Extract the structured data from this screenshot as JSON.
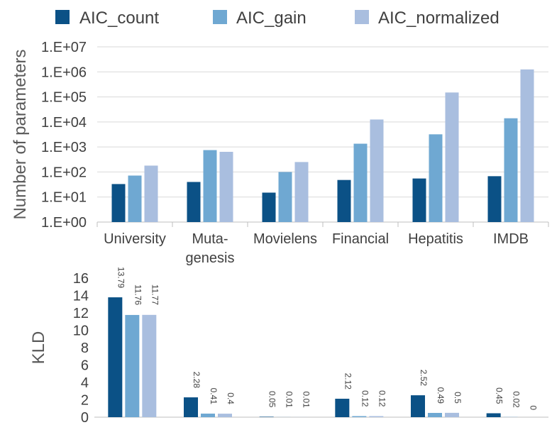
{
  "colors": {
    "AIC_count": "#0b5186",
    "AIC_gain": "#6fa8d2",
    "AIC_normalized": "#a9bedf",
    "grid": "#d9d9d9",
    "axis": "#bfbfbf",
    "text": "#404040"
  },
  "chart_data": [
    {
      "type": "bar",
      "y_scale": "log",
      "title": "",
      "xlabel": "",
      "ylabel": "Number of parameters",
      "ylim": [
        1,
        10000000
      ],
      "y_ticks": [
        "1.E+00",
        "1.E+01",
        "1.E+02",
        "1.E+03",
        "1.E+04",
        "1.E+05",
        "1.E+06",
        "1.E+07"
      ],
      "grid": true,
      "legend": "top",
      "categories": [
        [
          "University"
        ],
        [
          "Muta-",
          "genesis"
        ],
        [
          "Movielens"
        ],
        [
          "Financial"
        ],
        [
          "Hepatitis"
        ],
        [
          "IMDB"
        ]
      ],
      "series": [
        {
          "name": "AIC_count",
          "values": [
            33,
            40,
            15,
            48,
            55,
            68
          ]
        },
        {
          "name": "AIC_gain",
          "values": [
            72,
            750,
            100,
            1350,
            3200,
            14000
          ]
        },
        {
          "name": "AIC_normalized",
          "values": [
            180,
            640,
            250,
            12500,
            150000,
            1250000
          ]
        }
      ]
    },
    {
      "type": "bar",
      "y_scale": "linear",
      "title": "",
      "xlabel": "",
      "ylabel": "KLD",
      "ylim": [
        0,
        16
      ],
      "y_ticks": [
        "0",
        "2",
        "4",
        "6",
        "8",
        "10",
        "12",
        "14",
        "16"
      ],
      "grid": false,
      "categories": [
        "University",
        "Mutagenesis",
        "Movielens",
        "Financial",
        "Hepatitis",
        "IMDB"
      ],
      "series": [
        {
          "values": [
            13.79,
            2.28,
            0.05,
            2.12,
            2.52,
            0.45
          ],
          "labels": [
            "13.79",
            "2.28",
            "0.05",
            "2.12",
            "2.52",
            "0.45"
          ]
        },
        {
          "values": [
            11.76,
            0.41,
            0.01,
            0.12,
            0.49,
            0.02
          ],
          "labels": [
            "11.76",
            "0.41",
            "0.01",
            "0.12",
            "0.49",
            "0.02"
          ]
        },
        {
          "values": [
            11.77,
            0.4,
            0.01,
            0.12,
            0.5,
            0
          ],
          "labels": [
            "11.77",
            "0.4",
            "0.01",
            "0.12",
            "0.5",
            "0"
          ]
        }
      ]
    }
  ]
}
